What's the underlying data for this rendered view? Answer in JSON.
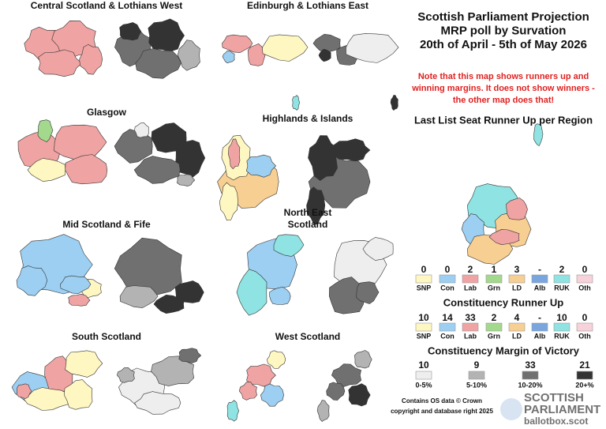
{
  "regions": [
    [
      "Central Scotland & Lothians West"
    ],
    [
      "Edinburgh & Lothians East"
    ],
    [
      "Glasgow"
    ],
    [
      "Highlands & Islands"
    ],
    [
      "Mid Scotland & Fife"
    ],
    [
      "North East",
      "Scotland"
    ],
    [
      "South Scotland"
    ],
    [
      "West Scotland"
    ]
  ],
  "header": {
    "title_lines": [
      "Scottish Parliament Projection",
      "MRP poll by Survation",
      "20th of April - 5th of May 2026"
    ],
    "note_lines": [
      "Note that this map shows runners up and",
      "winning margins. It does not show winners -",
      "the other map does that!"
    ]
  },
  "list_runner_up": {
    "heading": "Last List Seat Runner Up per Region",
    "parties": [
      {
        "name": "SNP",
        "count": 0,
        "color": "#fff7c2"
      },
      {
        "name": "Con",
        "count": 0,
        "color": "#9ccff2"
      },
      {
        "name": "Lab",
        "count": 2,
        "color": "#f0a3a3"
      },
      {
        "name": "Grn",
        "count": 1,
        "color": "#a3d98c"
      },
      {
        "name": "LD",
        "count": 3,
        "color": "#f7cf92"
      },
      {
        "name": "Alb",
        "count": "-",
        "color": "#7aa6e0"
      },
      {
        "name": "RUK",
        "count": 2,
        "color": "#8fe3e3"
      },
      {
        "name": "Oth",
        "count": 0,
        "color": "#f7d2da"
      }
    ]
  },
  "constituency_runner_up": {
    "heading": "Constituency Runner Up",
    "parties": [
      {
        "name": "SNP",
        "count": 10,
        "color": "#fff7c2"
      },
      {
        "name": "Con",
        "count": 14,
        "color": "#9ccff2"
      },
      {
        "name": "Lab",
        "count": 33,
        "color": "#f0a3a3"
      },
      {
        "name": "Grn",
        "count": 2,
        "color": "#a3d98c"
      },
      {
        "name": "LD",
        "count": 4,
        "color": "#f7cf92"
      },
      {
        "name": "Alb",
        "count": "-",
        "color": "#7aa6e0"
      },
      {
        "name": "RUK",
        "count": 10,
        "color": "#8fe3e3"
      },
      {
        "name": "Oth",
        "count": 0,
        "color": "#f7d2da"
      }
    ]
  },
  "margin": {
    "heading": "Constituency Margin of Victory",
    "bands": [
      {
        "count": 10,
        "label": "0-5%",
        "color": "#eeeeee"
      },
      {
        "count": 9,
        "label": "5-10%",
        "color": "#b3b3b3"
      },
      {
        "count": 33,
        "label": "10-20%",
        "color": "#707070"
      },
      {
        "count": 21,
        "label": "20+%",
        "color": "#333333"
      }
    ]
  },
  "credits": [
    "Contains OS data © Crown",
    "copyright and database right 2025"
  ],
  "logo": [
    "SCOTTISH",
    "PARLIAMENT",
    "ballotbox.scot"
  ]
}
